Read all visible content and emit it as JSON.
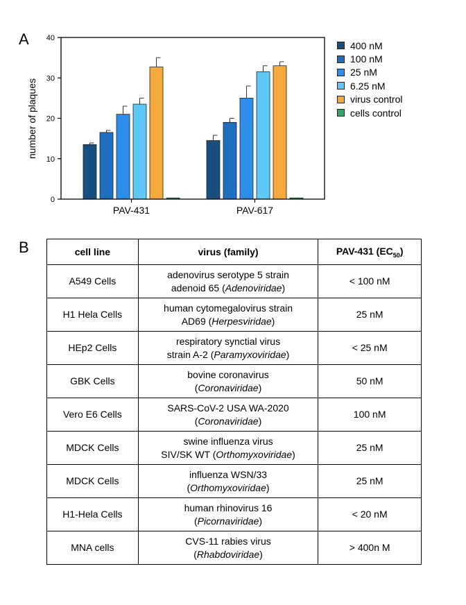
{
  "panel_a_letter": "A",
  "panel_b_letter": "B",
  "chart_data": {
    "type": "bar",
    "ylabel": "number of plaques",
    "xlabel": "",
    "ylim": [
      0,
      40
    ],
    "yticks": [
      "0",
      "10",
      "20",
      "30",
      "40"
    ],
    "categories": [
      "PAV-431",
      "PAV-617"
    ],
    "series": [
      {
        "name": "400 nM",
        "color": "#17507e",
        "values": [
          13.5,
          14.5
        ],
        "errors": [
          0.4,
          1.3
        ]
      },
      {
        "name": "100 nM",
        "color": "#1e6fc0",
        "values": [
          16.5,
          19.0
        ],
        "errors": [
          0.5,
          1.0
        ]
      },
      {
        "name": "25 nM",
        "color": "#2c8ee8",
        "values": [
          21.0,
          25.0
        ],
        "errors": [
          2.0,
          3.0
        ]
      },
      {
        "name": "6.25 nM",
        "color": "#5ec8f7",
        "values": [
          23.5,
          31.5
        ],
        "errors": [
          1.5,
          1.5
        ]
      },
      {
        "name": "virus control",
        "color": "#f5a93a",
        "values": [
          32.7,
          33.0
        ],
        "errors": [
          2.3,
          1.0
        ]
      },
      {
        "name": "cells control",
        "color": "#2fa86a",
        "values": [
          0.3,
          0.3
        ],
        "errors": [
          0,
          0
        ]
      }
    ],
    "grid": false,
    "legend": "right"
  },
  "table": {
    "headers": [
      "cell line",
      "virus (family)",
      "PAV-431 (EC",
      "50",
      ")"
    ],
    "rows": [
      {
        "cell": "A549 Cells",
        "v1": "adenovirus serotype 5 strain",
        "v2a": "adenoid 65 (",
        "v2i": "Adenoviridae",
        "v2b": ")",
        "ec": "< 100 nM"
      },
      {
        "cell": "H1 Hela Cells",
        "v1": "human cytomegalovirus strain",
        "v2a": "AD69 (",
        "v2i": "Herpesviridae",
        "v2b": ")",
        "ec": "25 nM"
      },
      {
        "cell": "HEp2 Cells",
        "v1": "respiratory synctial virus",
        "v2a": "strain A-2 (",
        "v2i": "Paramyxoviridae",
        "v2b": ")",
        "ec": "< 25 nM"
      },
      {
        "cell": "GBK Cells",
        "v1": "bovine coronavirus",
        "v2a": "(",
        "v2i": "Coronaviridae",
        "v2b": ")",
        "ec": "50 nM"
      },
      {
        "cell": "Vero E6 Cells",
        "v1": "SARS-CoV-2 USA WA-2020",
        "v2a": "(",
        "v2i": "Coronaviridae",
        "v2b": ")",
        "ec": "100 nM"
      },
      {
        "cell": "MDCK Cells",
        "v1": "swine influenza virus",
        "v2a": "SIV/SK WT (",
        "v2i": "Orthomyxoviridae",
        "v2b": ")",
        "ec": "25 nM"
      },
      {
        "cell": "MDCK Cells",
        "v1": "influenza WSN/33",
        "v2a": "(",
        "v2i": "Orthomyxoviridae",
        "v2b": ")",
        "ec": "25 nM"
      },
      {
        "cell": "H1-Hela Cells",
        "v1": "human rhinovirus 16",
        "v2a": "(",
        "v2i": "Picornaviridae",
        "v2b": ")",
        "ec": "< 20 nM"
      },
      {
        "cell": "MNA cells",
        "v1": "CVS-11 rabies virus",
        "v2a": "(",
        "v2i": "Rhabdoviridae",
        "v2b": ")",
        "ec": "> 400n M"
      }
    ]
  }
}
